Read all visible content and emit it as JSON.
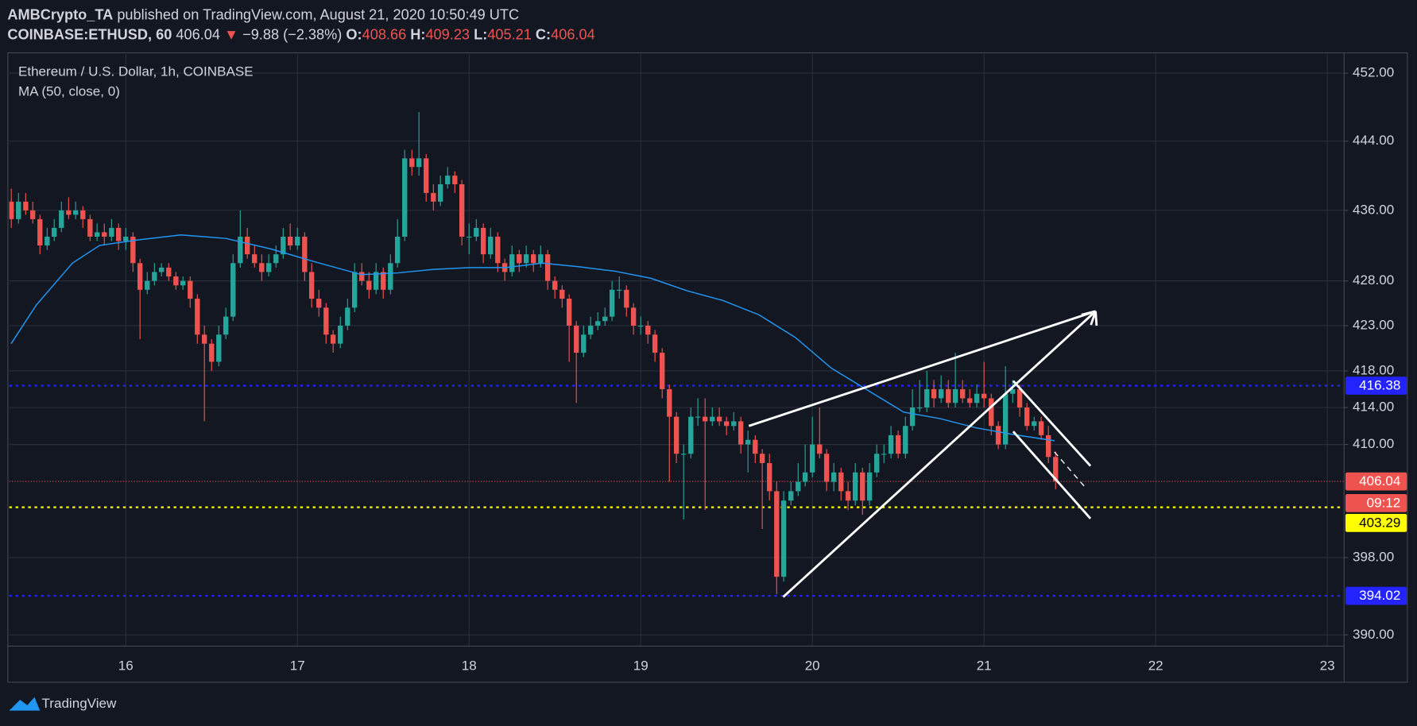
{
  "header": {
    "author": "AMBCrypto_TA",
    "published": "published on TradingView.com, August 21, 2020 10:50:49 UTC",
    "symbol": "COINBASE:ETHUSD, 60",
    "price": "406.04",
    "change": "−9.88 (−2.38%)",
    "ohlc": [
      {
        "label": "O:",
        "value": "408.66"
      },
      {
        "label": "H:",
        "value": "409.23"
      },
      {
        "label": "L:",
        "value": "405.21"
      },
      {
        "label": "C:",
        "value": "406.04"
      }
    ]
  },
  "chart_data": {
    "type": "candlestick",
    "title": "Ethereum / U.S. Dollar, 1h, COINBASE",
    "up_color": "#26a69a",
    "down_color": "#ef5350",
    "log": true,
    "grid": true,
    "xlim": [
      15.321,
      23.095
    ],
    "xticks": [
      16,
      17,
      18,
      19,
      20,
      21,
      22,
      23
    ],
    "ylim": [
      388.9,
      454.26
    ],
    "yticks": [
      {
        "value": 390,
        "label": "390.00"
      },
      {
        "value": 398,
        "label": "398.00"
      },
      {
        "value": 410,
        "label": "410.00"
      },
      {
        "value": 414,
        "label": "414.00"
      },
      {
        "value": 418,
        "label": "418.00"
      },
      {
        "value": 423,
        "label": "423.00"
      },
      {
        "value": 428,
        "label": "428.00"
      },
      {
        "value": 436,
        "label": "436.00"
      },
      {
        "value": 444,
        "label": "444.00"
      },
      {
        "value": 452,
        "label": "452.00"
      }
    ],
    "x": [
      15.333,
      15.375,
      15.417,
      15.458,
      15.5,
      15.542,
      15.583,
      15.625,
      15.667,
      15.708,
      15.75,
      15.792,
      15.833,
      15.875,
      15.917,
      15.958,
      16,
      16.042,
      16.083,
      16.125,
      16.167,
      16.208,
      16.25,
      16.292,
      16.333,
      16.375,
      16.417,
      16.458,
      16.5,
      16.542,
      16.583,
      16.625,
      16.667,
      16.708,
      16.75,
      16.792,
      16.833,
      16.875,
      16.917,
      16.958,
      17,
      17.042,
      17.083,
      17.125,
      17.167,
      17.208,
      17.25,
      17.292,
      17.333,
      17.375,
      17.417,
      17.458,
      17.5,
      17.542,
      17.583,
      17.625,
      17.667,
      17.708,
      17.75,
      17.792,
      17.833,
      17.875,
      17.917,
      17.958,
      18,
      18.042,
      18.083,
      18.125,
      18.167,
      18.208,
      18.25,
      18.292,
      18.333,
      18.375,
      18.417,
      18.458,
      18.5,
      18.542,
      18.583,
      18.625,
      18.667,
      18.708,
      18.75,
      18.792,
      18.833,
      18.875,
      18.917,
      18.958,
      19,
      19.042,
      19.083,
      19.125,
      19.167,
      19.208,
      19.25,
      19.292,
      19.333,
      19.375,
      19.417,
      19.458,
      19.5,
      19.542,
      19.583,
      19.625,
      19.667,
      19.708,
      19.75,
      19.792,
      19.833,
      19.875,
      19.917,
      19.958,
      20,
      20.042,
      20.083,
      20.125,
      20.167,
      20.208,
      20.25,
      20.292,
      20.333,
      20.375,
      20.417,
      20.458,
      20.5,
      20.542,
      20.583,
      20.625,
      20.667,
      20.708,
      20.75,
      20.792,
      20.833,
      20.875,
      20.917,
      20.958,
      21,
      21.042,
      21.083,
      21.125,
      21.167,
      21.208,
      21.25,
      21.292,
      21.333,
      21.375,
      21.417
    ],
    "ohlc": [
      [
        437,
        438.5,
        434,
        435
      ],
      [
        435,
        438,
        434.5,
        437
      ],
      [
        437,
        438,
        435.5,
        436
      ],
      [
        436,
        437,
        434.5,
        435
      ],
      [
        435,
        435.5,
        431,
        432
      ],
      [
        432,
        434,
        431.5,
        433
      ],
      [
        433,
        435,
        432.5,
        434
      ],
      [
        434,
        437,
        433.5,
        436
      ],
      [
        436,
        437.5,
        435,
        435.5
      ],
      [
        435.5,
        437,
        435,
        436
      ],
      [
        436,
        436.5,
        434,
        435
      ],
      [
        435,
        435.5,
        432.5,
        433
      ],
      [
        433,
        434.5,
        432.5,
        433.5
      ],
      [
        433.5,
        434.5,
        432,
        433
      ],
      [
        433,
        435,
        432.5,
        434
      ],
      [
        434,
        434.5,
        431.5,
        432.5
      ],
      [
        432.5,
        434,
        431.5,
        433
      ],
      [
        433,
        433.5,
        429,
        430
      ],
      [
        430,
        430.5,
        421.5,
        427
      ],
      [
        427,
        429,
        426.5,
        428
      ],
      [
        428,
        430,
        427.5,
        429
      ],
      [
        429,
        430,
        428.5,
        429.5
      ],
      [
        429.5,
        430,
        428,
        428.5
      ],
      [
        428.5,
        429,
        427,
        427.5
      ],
      [
        427.5,
        428.5,
        427,
        428
      ],
      [
        428,
        428.5,
        425,
        426
      ],
      [
        426,
        426.5,
        421,
        422
      ],
      [
        422,
        423,
        412.5,
        421
      ],
      [
        421,
        421.5,
        418,
        419
      ],
      [
        419,
        423,
        418.5,
        422
      ],
      [
        422,
        425,
        421.5,
        424
      ],
      [
        424,
        431,
        423.5,
        430
      ],
      [
        430,
        436,
        429.5,
        433
      ],
      [
        433,
        434,
        430.5,
        431
      ],
      [
        431,
        432,
        429.5,
        430
      ],
      [
        430,
        431,
        428,
        429
      ],
      [
        429,
        431,
        428.5,
        430
      ],
      [
        430,
        432,
        429.5,
        431
      ],
      [
        431,
        434,
        430.5,
        433
      ],
      [
        433,
        434.5,
        431.5,
        432
      ],
      [
        432,
        434,
        431.5,
        433
      ],
      [
        433,
        433.5,
        428,
        429
      ],
      [
        429,
        430,
        425,
        426
      ],
      [
        426,
        427,
        424,
        425
      ],
      [
        425,
        425.5,
        421,
        422
      ],
      [
        422,
        422.5,
        420,
        421
      ],
      [
        421,
        424,
        420.5,
        423
      ],
      [
        423,
        426,
        422.5,
        425
      ],
      [
        425,
        430,
        424.5,
        429
      ],
      [
        429,
        430,
        427.5,
        428
      ],
      [
        428,
        429,
        426,
        427
      ],
      [
        427,
        430,
        426.5,
        429
      ],
      [
        429,
        429.5,
        426,
        427
      ],
      [
        427,
        431,
        426.5,
        430
      ],
      [
        430,
        435,
        429.5,
        433
      ],
      [
        433,
        443,
        432.5,
        442
      ],
      [
        442,
        443,
        440,
        441
      ],
      [
        441,
        447.4,
        440,
        442
      ],
      [
        442,
        442.5,
        437,
        438
      ],
      [
        438,
        439,
        436,
        437
      ],
      [
        437,
        440,
        436.5,
        439
      ],
      [
        439,
        441,
        438.5,
        440
      ],
      [
        440,
        440.5,
        438,
        439
      ],
      [
        439,
        439.5,
        432,
        433
      ],
      [
        433,
        434.5,
        431,
        433
      ],
      [
        433,
        435,
        432.5,
        434
      ],
      [
        434,
        434.5,
        430,
        431
      ],
      [
        431,
        434,
        430.5,
        433
      ],
      [
        433,
        433.5,
        429,
        430
      ],
      [
        430,
        430.5,
        428,
        429
      ],
      [
        429,
        432,
        428.5,
        431
      ],
      [
        431,
        431.5,
        429,
        430
      ],
      [
        430,
        432,
        429.5,
        431
      ],
      [
        431,
        431.5,
        429,
        430
      ],
      [
        430,
        432,
        429.5,
        431
      ],
      [
        431,
        431.5,
        427,
        428
      ],
      [
        428,
        428.5,
        426,
        427
      ],
      [
        427,
        427.5,
        425,
        426
      ],
      [
        426,
        426.5,
        419,
        423
      ],
      [
        423,
        423.5,
        414.5,
        420
      ],
      [
        420,
        423,
        419.5,
        422
      ],
      [
        422,
        424,
        421.5,
        423
      ],
      [
        423,
        424.5,
        422.5,
        423.5
      ],
      [
        423.5,
        425,
        423,
        424
      ],
      [
        424,
        428,
        423.5,
        427
      ],
      [
        427,
        428.5,
        426,
        427
      ],
      [
        427,
        427.5,
        424,
        425
      ],
      [
        425,
        425.5,
        422,
        423
      ],
      [
        423,
        424,
        422,
        423
      ],
      [
        423,
        423.5,
        421,
        422
      ],
      [
        422,
        422.5,
        419,
        420
      ],
      [
        420,
        420.5,
        415,
        416
      ],
      [
        416,
        416.5,
        406,
        413
      ],
      [
        413,
        413.5,
        408,
        409
      ],
      [
        409,
        410,
        402,
        409
      ],
      [
        409,
        414,
        408.5,
        413
      ],
      [
        413,
        415,
        412,
        413
      ],
      [
        413,
        415,
        403,
        412.5
      ],
      [
        412.5,
        414,
        412,
        413
      ],
      [
        413,
        414,
        412,
        412.5
      ],
      [
        412.5,
        413,
        411,
        412
      ],
      [
        412,
        413.5,
        411.5,
        412.5
      ],
      [
        412.5,
        413,
        409,
        410
      ],
      [
        410,
        411.5,
        407,
        410.5
      ],
      [
        410.5,
        411,
        408,
        409
      ],
      [
        409,
        409.5,
        401,
        408
      ],
      [
        408,
        409,
        404,
        405
      ],
      [
        405,
        406,
        394.2,
        396
      ],
      [
        396,
        405,
        395.5,
        404
      ],
      [
        404,
        406,
        403.5,
        405
      ],
      [
        405,
        408,
        404.5,
        406
      ],
      [
        406,
        410,
        405.5,
        407
      ],
      [
        407,
        413,
        406.5,
        410
      ],
      [
        410,
        414,
        408.5,
        409
      ],
      [
        409,
        409.5,
        405,
        406
      ],
      [
        406,
        408,
        405,
        407
      ],
      [
        407,
        407.5,
        404,
        405
      ],
      [
        405,
        406,
        403,
        404
      ],
      [
        404,
        408,
        403.5,
        407
      ],
      [
        407,
        407.5,
        402.5,
        404
      ],
      [
        404,
        408,
        403.5,
        407
      ],
      [
        407,
        410,
        406.5,
        409
      ],
      [
        409,
        410,
        408,
        409
      ],
      [
        409,
        412,
        408.5,
        411
      ],
      [
        411,
        411.5,
        408.5,
        409
      ],
      [
        409,
        413,
        408.5,
        412
      ],
      [
        412,
        416,
        411.5,
        414
      ],
      [
        414,
        417,
        413.5,
        414
      ],
      [
        414,
        418,
        413.5,
        416
      ],
      [
        416,
        417,
        414,
        415
      ],
      [
        415,
        417.5,
        414.5,
        416
      ],
      [
        416,
        417,
        414,
        414.5
      ],
      [
        414.5,
        420,
        414,
        416
      ],
      [
        416,
        417,
        414.5,
        415
      ],
      [
        415,
        416,
        414,
        414.5
      ],
      [
        414.5,
        416.5,
        414,
        415.5
      ],
      [
        415.5,
        419,
        414,
        415
      ],
      [
        415,
        415.5,
        411,
        412
      ],
      [
        412,
        412.5,
        409.5,
        410
      ],
      [
        410,
        418.5,
        409.5,
        415.5
      ],
      [
        415.5,
        417,
        414.5,
        416
      ],
      [
        416,
        416.5,
        413,
        414
      ],
      [
        414,
        414.5,
        411.5,
        412
      ],
      [
        412,
        413,
        411.5,
        412.5
      ],
      [
        412.5,
        413,
        410.5,
        411
      ],
      [
        411,
        412,
        408,
        408.66
      ],
      [
        408.66,
        409.23,
        405.21,
        406.04
      ]
    ],
    "series": [
      {
        "name": "MA (50, close, 0)",
        "color": "#2196f3",
        "x": [
          15.332,
          15.479,
          15.689,
          15.847,
          16.058,
          16.321,
          16.584,
          16.847,
          17.111,
          17.374,
          17.584,
          17.795,
          18.005,
          18.216,
          18.426,
          18.637,
          18.847,
          19.058,
          19.268,
          19.479,
          19.689,
          19.9,
          20.111,
          20.321,
          20.532,
          20.742,
          20.953,
          21.163,
          21.411
        ],
        "values": [
          421,
          425.3,
          430,
          432,
          432.6,
          433.2,
          432.8,
          431.6,
          430.1,
          428.7,
          428.9,
          429.3,
          429.5,
          429.5,
          430,
          429.6,
          429.1,
          428.3,
          426.9,
          425.8,
          424.2,
          421.7,
          418.3,
          415.9,
          413.5,
          412.8,
          411.8,
          411.1,
          410.4
        ]
      }
    ],
    "levels": [
      {
        "value": 416.38,
        "color": "#2323ff",
        "text_color": "#ffffff"
      },
      {
        "value": 406.04,
        "color": "#ef5350",
        "text_color": "#ffffff",
        "countdown": "09:12"
      },
      {
        "value": 403.29,
        "color": "#ffff00",
        "text_color": "#000000"
      },
      {
        "value": 394.02,
        "color": "#2323ff",
        "text_color": "#ffffff"
      }
    ],
    "drawings": [
      {
        "x": [
          19.63,
          21.65
        ],
        "y": [
          412.0,
          424.6
        ]
      },
      {
        "x": [
          19.83,
          21.65
        ],
        "y": [
          393.9,
          424.6
        ],
        "arrow": true
      },
      {
        "x": [
          21.17,
          21.62
        ],
        "y": [
          416.9,
          407.7
        ]
      },
      {
        "x": [
          21.17,
          21.62
        ],
        "y": [
          411.4,
          402.1
        ]
      },
      {
        "x": [
          21.41,
          21.59
        ],
        "y": [
          409.2,
          405.4
        ],
        "dashed": true
      }
    ]
  },
  "footer": {
    "brand": "TradingView"
  }
}
